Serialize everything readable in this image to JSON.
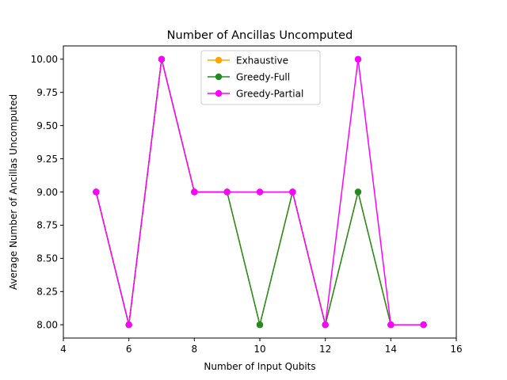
{
  "chart_data": {
    "type": "line",
    "title": "Number of Ancillas Uncomputed",
    "xlabel": "Number of Input Qubits",
    "ylabel": "Average Number of Ancillas Uncomputed",
    "xlim": [
      4,
      16
    ],
    "ylim": [
      7.9,
      10.1
    ],
    "xticks": [
      "4",
      "6",
      "8",
      "10",
      "12",
      "14",
      "16"
    ],
    "yticks": [
      "8.00",
      "8.25",
      "8.50",
      "8.75",
      "9.00",
      "9.25",
      "9.50",
      "9.75",
      "10.00"
    ],
    "x": [
      5,
      6,
      7,
      8,
      9,
      10,
      11,
      12,
      13,
      14,
      15
    ],
    "grid": false,
    "legend_position": "upper-center",
    "series": [
      {
        "name": "Exhaustive",
        "color": "#ffa500",
        "values": [
          9,
          8,
          10,
          9,
          9,
          8,
          9,
          8,
          9,
          8,
          8
        ]
      },
      {
        "name": "Greedy-Full",
        "color": "#228b22",
        "values": [
          9,
          8,
          10,
          9,
          9,
          8,
          9,
          8,
          9,
          8,
          8
        ]
      },
      {
        "name": "Greedy-Partial",
        "color": "#ff00ff",
        "values": [
          9,
          8,
          10,
          9,
          9,
          9,
          9,
          8,
          10,
          8,
          8
        ]
      }
    ]
  }
}
